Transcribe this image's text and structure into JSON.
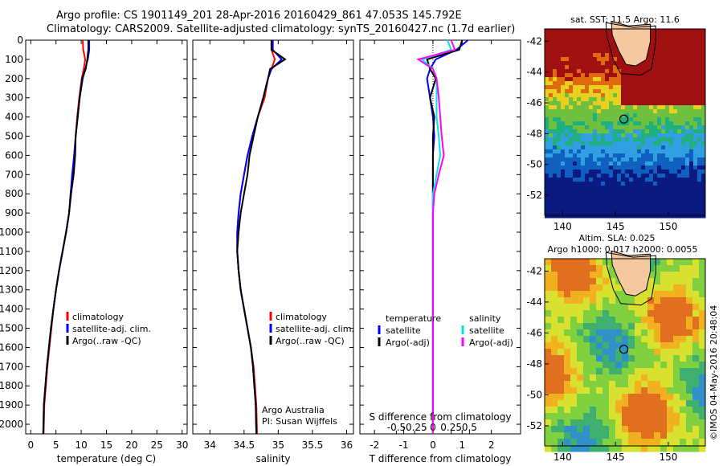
{
  "title_line1": "Argo profile: CS 1901149_201 28-Apr-2016 20160429_861 47.053S 145.792E",
  "title_line2": "Climatology: CARS2009. Satellite-adjusted climatology: synTS_20160427.nc (1.7d earlier)",
  "imos_stamp": "©IMOS 04-May-2016 20:48:04",
  "colors": {
    "climatology": "#ff0000",
    "satellite": "#0000ff",
    "argo": "#000000",
    "salinity_satellite": "#00e5e5",
    "salinity_argo": "#ff00ff"
  },
  "chart_data": [
    {
      "id": "temperature_profile",
      "type": "line",
      "xlabel": "temperature (deg C)",
      "ylabel": "",
      "xlim": [
        -1,
        31
      ],
      "ylim": [
        2050,
        0
      ],
      "xticks": [
        0,
        5,
        10,
        15,
        20,
        25,
        30
      ],
      "yticks": [
        0,
        100,
        200,
        300,
        400,
        500,
        600,
        700,
        800,
        900,
        1000,
        1100,
        1200,
        1300,
        1400,
        1500,
        1600,
        1700,
        1800,
        1900,
        2000
      ],
      "legend": {
        "position": "lower-right",
        "entries": [
          "climatology",
          "satellite-adj. clim.",
          "Argo(..raw -QC)"
        ]
      },
      "series": [
        {
          "name": "climatology",
          "color": "#ff0000",
          "x": [
            10.3,
            10.4,
            10.8,
            10.5,
            10.1,
            9.6,
            9.2,
            8.9,
            8.6,
            8.3,
            7.9,
            7.6,
            7.0,
            6.3,
            5.6,
            5.0,
            4.5,
            4.1,
            3.7,
            3.3,
            3.0,
            2.7,
            2.55
          ],
          "y": [
            0,
            50,
            100,
            150,
            200,
            300,
            400,
            500,
            600,
            700,
            800,
            900,
            1000,
            1100,
            1200,
            1300,
            1400,
            1500,
            1600,
            1700,
            1800,
            1900,
            2050
          ]
        },
        {
          "name": "satellite-adj. clim.",
          "color": "#0000ff",
          "x": [
            11.6,
            11.6,
            11.3,
            10.8,
            10.3,
            9.7,
            9.3,
            8.9,
            8.6,
            8.2,
            7.9,
            7.6,
            7.0,
            6.3,
            5.6,
            5.0,
            4.5,
            4.0,
            3.6,
            3.2,
            2.9,
            2.6,
            2.45
          ],
          "y": [
            0,
            50,
            100,
            150,
            200,
            300,
            400,
            500,
            600,
            700,
            800,
            900,
            1000,
            1100,
            1200,
            1300,
            1400,
            1500,
            1600,
            1700,
            1800,
            1900,
            2050
          ]
        },
        {
          "name": "Argo(..raw -QC)",
          "color": "#000000",
          "x": [
            11.4,
            11.4,
            11.2,
            10.9,
            10.2,
            9.7,
            9.3,
            8.9,
            8.8,
            8.5,
            8.0,
            7.6,
            7.0,
            6.3,
            5.6,
            5.0,
            4.5,
            4.0,
            3.6,
            3.2,
            2.9,
            2.6,
            2.5
          ],
          "y": [
            0,
            50,
            100,
            150,
            200,
            300,
            400,
            500,
            600,
            700,
            800,
            900,
            1000,
            1100,
            1200,
            1300,
            1400,
            1500,
            1600,
            1700,
            1800,
            1900,
            2050
          ]
        }
      ]
    },
    {
      "id": "salinity_profile",
      "type": "line",
      "xlabel": "salinity",
      "xlim": [
        33.75,
        36.1
      ],
      "ylim": [
        2050,
        0
      ],
      "xticks": [
        34,
        34.5,
        35,
        35.5,
        36
      ],
      "xticklabels": [
        "34",
        "34.5",
        "35",
        "35.5",
        "36"
      ],
      "legend": {
        "position": "lower-right",
        "entries": [
          "climatology",
          "satellite-adj. clim.",
          "Argo(..raw -QC)"
        ]
      },
      "annotation": [
        "Argo Australia",
        "PI: Susan Wijffels"
      ],
      "series": [
        {
          "name": "climatology",
          "color": "#ff0000",
          "x": [
            34.9,
            34.9,
            34.95,
            34.9,
            34.85,
            34.8,
            34.7,
            34.62,
            34.55,
            34.5,
            34.45,
            34.42,
            34.4,
            34.4,
            34.42,
            34.45,
            34.5,
            34.55,
            34.6,
            34.64,
            34.66,
            34.68,
            34.69
          ],
          "y": [
            0,
            50,
            100,
            150,
            200,
            300,
            400,
            500,
            600,
            700,
            800,
            900,
            1000,
            1100,
            1200,
            1300,
            1400,
            1500,
            1600,
            1700,
            1800,
            1900,
            2050
          ]
        },
        {
          "name": "satellite-adj. clim.",
          "color": "#0000ff",
          "x": [
            34.92,
            34.92,
            35.05,
            34.9,
            34.85,
            34.78,
            34.7,
            34.62,
            34.55,
            34.5,
            34.45,
            34.42,
            34.4,
            34.4,
            34.42,
            34.45,
            34.5,
            34.55,
            34.6,
            34.63,
            34.65,
            34.67,
            34.68
          ],
          "y": [
            0,
            50,
            100,
            150,
            200,
            300,
            400,
            500,
            600,
            700,
            800,
            900,
            1000,
            1100,
            1200,
            1300,
            1400,
            1500,
            1600,
            1700,
            1800,
            1900,
            2050
          ]
        },
        {
          "name": "Argo(..raw -QC)",
          "color": "#000000",
          "x": [
            34.9,
            34.9,
            35.1,
            34.88,
            34.85,
            34.78,
            34.7,
            34.64,
            34.58,
            34.55,
            34.5,
            34.45,
            34.42,
            34.4,
            34.42,
            34.45,
            34.5,
            34.55,
            34.6,
            34.63,
            34.65,
            34.67,
            34.68
          ],
          "y": [
            0,
            50,
            100,
            150,
            200,
            300,
            400,
            500,
            600,
            700,
            800,
            900,
            1000,
            1100,
            1200,
            1300,
            1400,
            1500,
            1600,
            1700,
            1800,
            1900,
            2050
          ]
        }
      ]
    },
    {
      "id": "difference_profile",
      "type": "line",
      "xlabel": "T difference from climatology",
      "top_axis_label": "S difference from climatology",
      "xlim": [
        -2.5,
        3
      ],
      "ylim": [
        2050,
        0
      ],
      "xticks": [
        -2,
        -1,
        0,
        1,
        2
      ],
      "xticklabels": [
        "-2",
        "-1",
        "0",
        "1",
        "2"
      ],
      "sticks": [
        -0.5,
        -0.25,
        0,
        0.25,
        0.5
      ],
      "sticklabels": [
        "-0.5",
        "-0.25",
        "0",
        "0.25",
        "0.5"
      ],
      "legend": {
        "position": "lower-middle",
        "groups": [
          {
            "heading": "temperature",
            "entries": [
              "satellite",
              "Argo(-adj)"
            ]
          },
          {
            "heading": "salinity",
            "entries": [
              "satellite",
              "Argo(-adj)"
            ]
          }
        ]
      },
      "series": [
        {
          "name": "temperature satellite",
          "color": "#0000ff",
          "x": [
            1.2,
            0.8,
            0.1,
            -0.1,
            -0.2,
            -0.1,
            0.0,
            0.05,
            0.0,
            0.0,
            0.0,
            0.0,
            0.0,
            0.0,
            0.0,
            0.0,
            0.0,
            0.0,
            0.0,
            0.0,
            0.0
          ],
          "y": [
            0,
            50,
            100,
            150,
            200,
            300,
            400,
            500,
            600,
            700,
            800,
            900,
            1000,
            1100,
            1200,
            1300,
            1400,
            1500,
            1600,
            1700,
            2050
          ]
        },
        {
          "name": "temperature Argo(-adj)",
          "color": "#000000",
          "x": [
            1.0,
            0.9,
            -0.2,
            -0.1,
            0.1,
            -0.1,
            0.05,
            0.0,
            0.0,
            0.0,
            0.0,
            0.0,
            0.0,
            0.0,
            0.0,
            0.0,
            0.0,
            0.0,
            0.0,
            0.0,
            0.0
          ],
          "y": [
            0,
            50,
            100,
            150,
            200,
            300,
            400,
            500,
            600,
            700,
            800,
            900,
            1000,
            1100,
            1200,
            1300,
            1400,
            1500,
            1600,
            1700,
            2050
          ]
        },
        {
          "name": "salinity satellite",
          "color": "#00e5e5",
          "x": [
            0.2,
            0.25,
            -0.15,
            0.0,
            0.05,
            0.05,
            0.05,
            0.08,
            0.1,
            0.05,
            0.0,
            0.0,
            0.0,
            0.0,
            0.0,
            0.0,
            0.0,
            0.0,
            0.0,
            0.0,
            0.0
          ],
          "y": [
            0,
            50,
            100,
            150,
            200,
            300,
            400,
            500,
            600,
            700,
            800,
            900,
            1000,
            1100,
            1200,
            1300,
            1400,
            1500,
            1600,
            1700,
            2050
          ]
        },
        {
          "name": "salinity Argo(-adj)",
          "color": "#ff00ff",
          "x": [
            0.25,
            0.3,
            -0.2,
            0.0,
            0.05,
            0.08,
            0.1,
            0.12,
            0.15,
            0.08,
            0.02,
            0.0,
            0.0,
            0.0,
            0.0,
            0.0,
            0.0,
            0.0,
            0.0,
            0.0,
            0.0
          ],
          "y": [
            0,
            50,
            100,
            150,
            200,
            300,
            400,
            500,
            600,
            700,
            800,
            900,
            1000,
            1100,
            1200,
            1300,
            1400,
            1500,
            1600,
            1700,
            2050
          ]
        }
      ]
    },
    {
      "id": "sst_map",
      "type": "heatmap",
      "title": "sat. SST: 11.5  Argo: 11.6",
      "xticks": [
        140,
        145,
        150
      ],
      "yticks": [
        -42,
        -44,
        -46,
        -48,
        -50,
        -52
      ],
      "xlim": [
        138.3,
        153.5
      ],
      "ylim": [
        -53.3,
        -41.2
      ],
      "marker": {
        "lon": 145.792,
        "lat": -47.053
      }
    },
    {
      "id": "sla_map",
      "type": "heatmap",
      "title_line1": "Altim. SLA: 0.025",
      "title_line2": "Argo h1000: 0.017  h2000: 0.0055",
      "xticks": [
        140,
        145,
        150
      ],
      "yticks": [
        -42,
        -44,
        -46,
        -48,
        -50,
        -52
      ],
      "xlim": [
        138.3,
        153.5
      ],
      "ylim": [
        -53.3,
        -41.2
      ],
      "marker": {
        "lon": 145.792,
        "lat": -47.053
      }
    }
  ]
}
